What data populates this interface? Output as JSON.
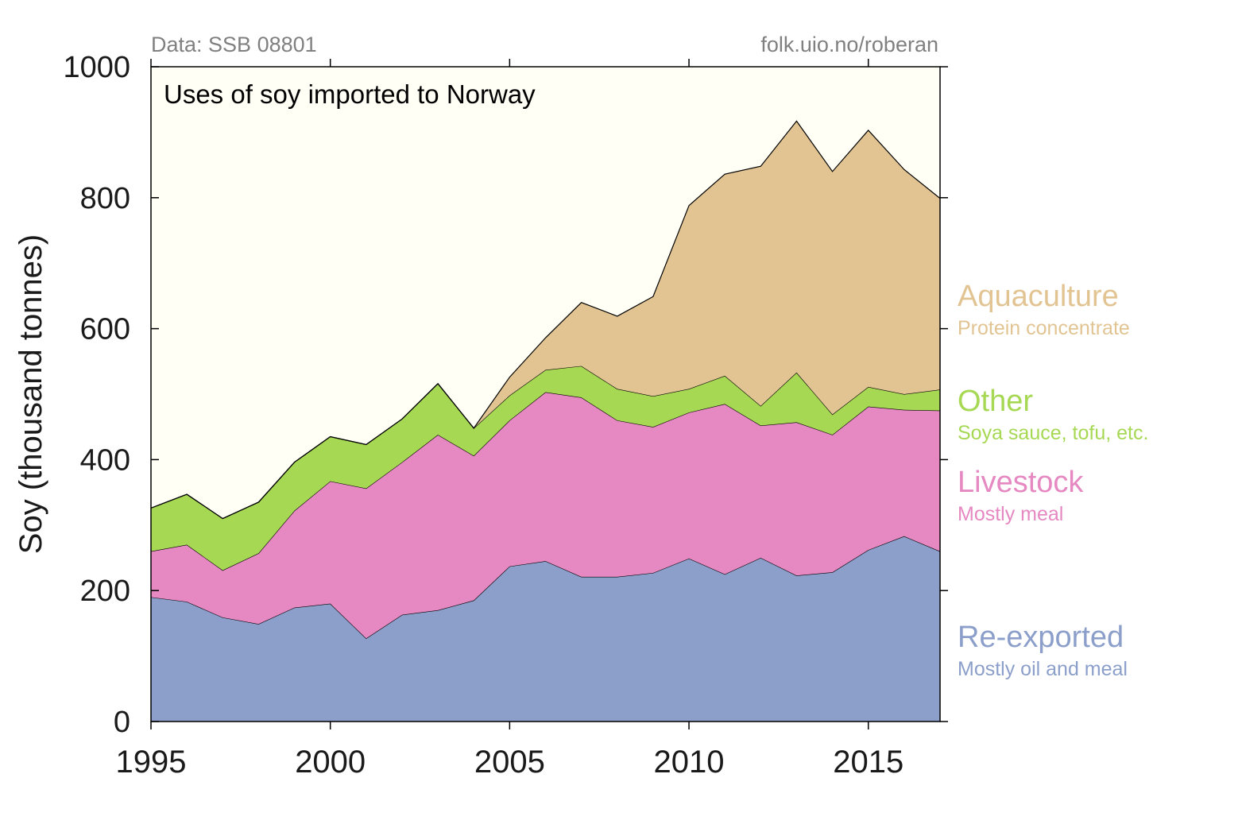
{
  "source_left": "Data: SSB 08801",
  "source_right": "folk.uio.no/roberan",
  "chart_data": {
    "type": "area",
    "stacked": true,
    "title": "Uses of soy imported to Norway",
    "ylabel": "Soy (thousand tonnes)",
    "xlabel": "",
    "xlim": [
      1995,
      2017
    ],
    "ylim": [
      0,
      1000
    ],
    "xticks": [
      1995,
      2000,
      2005,
      2010,
      2015
    ],
    "yticks": [
      0,
      200,
      400,
      600,
      800,
      1000
    ],
    "grid": false,
    "legend_placement": "right",
    "background_color": "#fffff5",
    "x": [
      1995,
      1996,
      1997,
      1998,
      1999,
      2000,
      2001,
      2002,
      2003,
      2004,
      2005,
      2006,
      2007,
      2008,
      2009,
      2010,
      2011,
      2012,
      2013,
      2014,
      2015,
      2016,
      2017
    ],
    "series": [
      {
        "name": "Re-exported",
        "subtitle": "Mostly oil and meal",
        "color": "#8b9fca",
        "values": [
          190,
          183,
          159,
          149,
          174,
          180,
          127,
          163,
          170,
          185,
          237,
          245,
          221,
          221,
          227,
          249,
          225,
          250,
          223,
          228,
          262,
          283,
          260
        ]
      },
      {
        "name": "Livestock",
        "subtitle": "Mostly meal",
        "color": "#e688c1",
        "values": [
          70,
          87,
          72,
          108,
          148,
          187,
          229,
          233,
          268,
          221,
          223,
          258,
          274,
          239,
          223,
          223,
          260,
          202,
          234,
          210,
          219,
          193,
          215
        ]
      },
      {
        "name": "Other",
        "subtitle": "Soya sauce, tofu, etc.",
        "color": "#a6d854",
        "values": [
          66,
          77,
          79,
          78,
          74,
          68,
          67,
          66,
          78,
          42,
          38,
          34,
          48,
          48,
          47,
          36,
          43,
          30,
          76,
          31,
          30,
          24,
          32
        ]
      },
      {
        "name": "Aquaculture",
        "subtitle": "Protein concentrate",
        "color": "#e2c493",
        "values": [
          0,
          0,
          0,
          0,
          0,
          0,
          0,
          0,
          0,
          0,
          28,
          49,
          97,
          111,
          152,
          280,
          308,
          366,
          384,
          371,
          392,
          343,
          292
        ]
      }
    ]
  }
}
